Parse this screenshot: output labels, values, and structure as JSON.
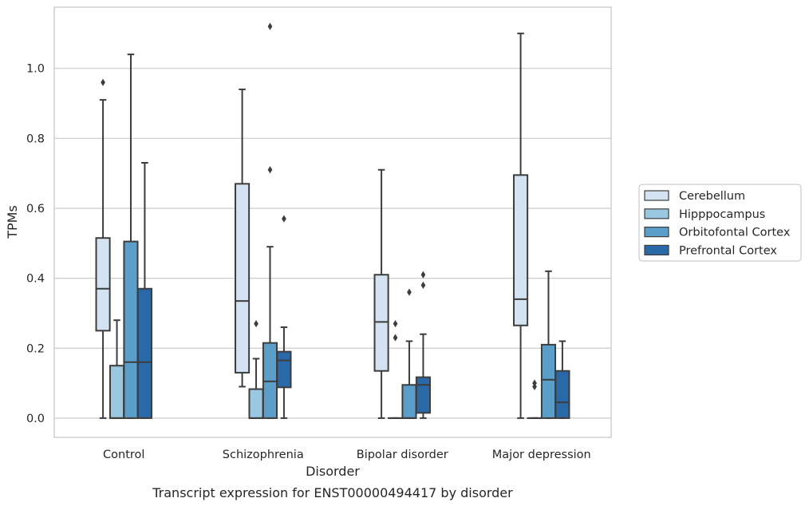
{
  "chart_data": {
    "type": "boxplot",
    "xlabel": "Disorder",
    "ylabel": "TPMs",
    "caption": "Transcript expression for ENST00000494417 by disorder",
    "ylim": [
      -0.055,
      1.175
    ],
    "yticks": [
      0.0,
      0.2,
      0.4,
      0.6,
      0.8,
      1.0
    ],
    "ytick_labels": [
      "0.0",
      "0.2",
      "0.4",
      "0.6",
      "0.8",
      "1.0"
    ],
    "grid": "horizontal",
    "legend_position": "right",
    "categories": [
      "Control",
      "Schizophrenia",
      "Bipolar disorder",
      "Major depression"
    ],
    "series": [
      {
        "name": "Cerebellum",
        "color": "#d3e3f2",
        "boxes": [
          {
            "whisker_low": 0.0,
            "q1": 0.25,
            "median": 0.37,
            "q3": 0.515,
            "whisker_high": 0.91,
            "outliers": [
              0.96
            ]
          },
          {
            "whisker_low": 0.09,
            "q1": 0.13,
            "median": 0.335,
            "q3": 0.67,
            "whisker_high": 0.94,
            "outliers": []
          },
          {
            "whisker_low": 0.0,
            "q1": 0.135,
            "median": 0.275,
            "q3": 0.41,
            "whisker_high": 0.71,
            "outliers": []
          },
          {
            "whisker_low": 0.0,
            "q1": 0.265,
            "median": 0.34,
            "q3": 0.695,
            "whisker_high": 1.1,
            "outliers": []
          }
        ]
      },
      {
        "name": "Hipppocampus",
        "color": "#9ac8e0",
        "boxes": [
          {
            "whisker_low": 0.0,
            "q1": 0.0,
            "median": 0.0,
            "q3": 0.15,
            "whisker_high": 0.28,
            "outliers": []
          },
          {
            "whisker_low": 0.0,
            "q1": 0.0,
            "median": 0.0,
            "q3": 0.083,
            "whisker_high": 0.17,
            "outliers": [
              0.27
            ]
          },
          {
            "whisker_low": 0.0,
            "q1": 0.0,
            "median": 0.0,
            "q3": 0.0,
            "whisker_high": 0.0,
            "outliers": [
              0.23,
              0.27
            ]
          },
          {
            "whisker_low": 0.0,
            "q1": 0.0,
            "median": 0.0,
            "q3": 0.0,
            "whisker_high": 0.0,
            "outliers": [
              0.09,
              0.1
            ]
          }
        ]
      },
      {
        "name": "Orbitofontal Cortex",
        "color": "#5a9ec9",
        "boxes": [
          {
            "whisker_low": 0.0,
            "q1": 0.0,
            "median": 0.16,
            "q3": 0.505,
            "whisker_high": 1.04,
            "outliers": []
          },
          {
            "whisker_low": 0.0,
            "q1": 0.0,
            "median": 0.105,
            "q3": 0.215,
            "whisker_high": 0.49,
            "outliers": [
              0.71,
              1.12
            ]
          },
          {
            "whisker_low": 0.0,
            "q1": 0.0,
            "median": 0.0,
            "q3": 0.095,
            "whisker_high": 0.22,
            "outliers": [
              0.36
            ]
          },
          {
            "whisker_low": 0.0,
            "q1": 0.0,
            "median": 0.11,
            "q3": 0.21,
            "whisker_high": 0.42,
            "outliers": []
          }
        ]
      },
      {
        "name": "Prefrontal Cortex",
        "color": "#2a69a8",
        "boxes": [
          {
            "whisker_low": 0.0,
            "q1": 0.0,
            "median": 0.16,
            "q3": 0.37,
            "whisker_high": 0.73,
            "outliers": []
          },
          {
            "whisker_low": 0.0,
            "q1": 0.088,
            "median": 0.165,
            "q3": 0.19,
            "whisker_high": 0.26,
            "outliers": [
              0.57
            ]
          },
          {
            "whisker_low": 0.0,
            "q1": 0.015,
            "median": 0.095,
            "q3": 0.117,
            "whisker_high": 0.24,
            "outliers": [
              0.38,
              0.41
            ]
          },
          {
            "whisker_low": 0.0,
            "q1": 0.0,
            "median": 0.045,
            "q3": 0.135,
            "whisker_high": 0.22,
            "outliers": []
          }
        ]
      }
    ]
  }
}
